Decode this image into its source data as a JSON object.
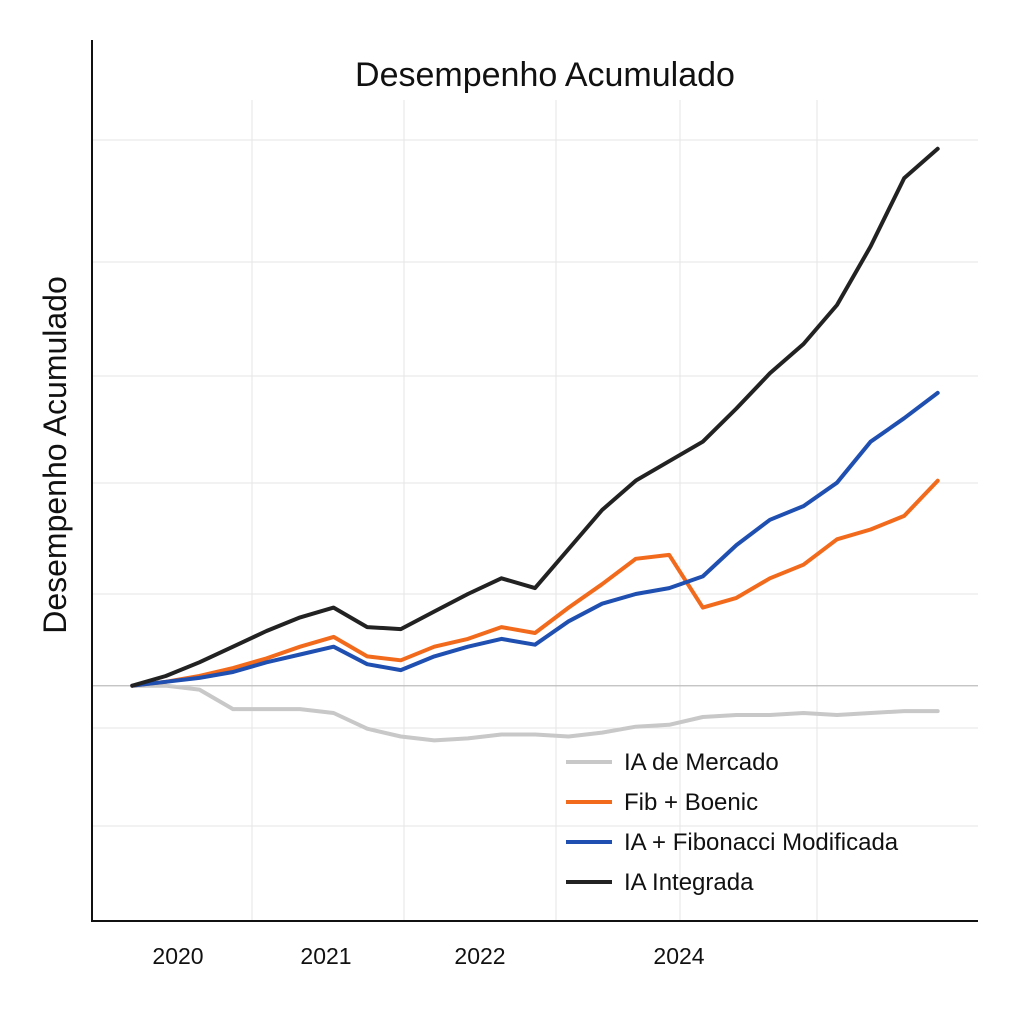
{
  "chart_data": {
    "type": "line",
    "title": "Desempenho Acumulado",
    "xlabel": "",
    "ylabel": "Desempenho Acumulado",
    "x_ticks": [
      "2020",
      "2021",
      "2022",
      "2024"
    ],
    "y_tick_labels": [],
    "grid": true,
    "legend_position": "bottom-right",
    "x": [
      0.0,
      0.25,
      0.5,
      0.75,
      1.0,
      1.25,
      1.5,
      1.75,
      2.0,
      2.25,
      2.5,
      2.75,
      3.0,
      3.25,
      3.5,
      3.75,
      4.0,
      4.25,
      4.5,
      4.75,
      5.0,
      5.25,
      5.5,
      5.75,
      6.0
    ],
    "series": [
      {
        "name": "IA de Mercado",
        "color": "#c8c8c8",
        "values": [
          0,
          0,
          -0.02,
          -0.12,
          -0.12,
          -0.12,
          -0.14,
          -0.22,
          -0.26,
          -0.28,
          -0.27,
          -0.25,
          -0.25,
          -0.26,
          -0.24,
          -0.21,
          -0.2,
          -0.16,
          -0.15,
          -0.15,
          -0.14,
          -0.15,
          -0.14,
          -0.13,
          -0.13
        ]
      },
      {
        "name": "Fib + Boenic",
        "color": "#f26a1b",
        "values": [
          0,
          0.02,
          0.05,
          0.09,
          0.14,
          0.2,
          0.25,
          0.15,
          0.13,
          0.2,
          0.24,
          0.3,
          0.27,
          0.4,
          0.52,
          0.65,
          0.67,
          0.4,
          0.45,
          0.55,
          0.62,
          0.75,
          0.8,
          0.87,
          1.05
        ]
      },
      {
        "name": "IA + Fibonacci Modificada",
        "color": "#1f4fb0",
        "values": [
          0,
          0.02,
          0.04,
          0.07,
          0.12,
          0.16,
          0.2,
          0.11,
          0.08,
          0.15,
          0.2,
          0.24,
          0.21,
          0.33,
          0.42,
          0.47,
          0.5,
          0.56,
          0.72,
          0.85,
          0.92,
          1.04,
          1.25,
          1.37,
          1.5
        ]
      },
      {
        "name": "IA Integrada",
        "color": "#222222",
        "values": [
          0,
          0.05,
          0.12,
          0.2,
          0.28,
          0.35,
          0.4,
          0.3,
          0.29,
          0.38,
          0.47,
          0.55,
          0.5,
          0.7,
          0.9,
          1.05,
          1.15,
          1.25,
          1.42,
          1.6,
          1.75,
          1.95,
          2.25,
          2.6,
          2.75
        ]
      }
    ],
    "xlim": [
      -0.3,
      6.3
    ],
    "ylim": [
      -1.2,
      3.0
    ]
  }
}
